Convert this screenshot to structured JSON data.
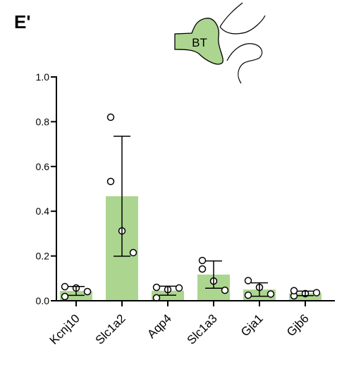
{
  "panel_label": "E'",
  "icon_label": "BT",
  "chart_data": {
    "type": "bar",
    "categories": [
      "Kcnj10",
      "Slc1a2",
      "Aqp4",
      "Slc1a3",
      "Gja1",
      "Gjb6"
    ],
    "values": [
      0.044,
      0.467,
      0.045,
      0.117,
      0.05,
      0.033
    ],
    "errors": [
      0.02,
      0.268,
      0.02,
      0.061,
      0.03,
      0.01
    ],
    "points": [
      [
        0.063,
        0.019,
        0.057,
        0.041
      ],
      [
        0.82,
        0.533,
        0.312,
        0.215
      ],
      [
        0.06,
        0.013,
        0.05,
        0.057
      ],
      [
        0.18,
        0.142,
        0.088,
        0.047
      ],
      [
        0.025,
        0.09,
        0.06,
        0.03
      ],
      [
        0.022,
        0.045,
        0.032,
        0.036
      ]
    ],
    "color": "#acd68f",
    "ylim": [
      0,
      1.0
    ],
    "yticks": [
      {
        "value": 0,
        "label": "0.0"
      },
      0.2,
      0.4,
      0.6,
      0.8,
      {
        "value": 1.0,
        "label": "1.0"
      }
    ]
  }
}
